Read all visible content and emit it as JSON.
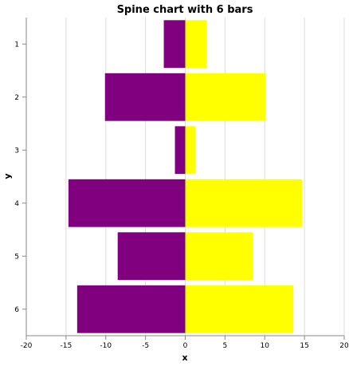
{
  "chart_data": {
    "type": "bar",
    "title": "Spine chart with 6 bars",
    "xlabel": "x",
    "ylabel": "y",
    "categories": [
      "1",
      "2",
      "3",
      "4",
      "5",
      "6"
    ],
    "series": [
      {
        "values": [
          -2.7,
          -10.1,
          -1.3,
          -14.7,
          -8.5,
          -13.6
        ]
      },
      {
        "values": [
          2.7,
          10.1,
          1.3,
          14.7,
          8.5,
          13.6
        ]
      }
    ],
    "xlim": [
      -20,
      20
    ],
    "xticks": [
      -20,
      -15,
      -10,
      -5,
      0,
      5,
      10,
      15,
      20
    ],
    "grid": true,
    "colors": {
      "negative": "#800080",
      "positive": "#ffff00"
    }
  }
}
